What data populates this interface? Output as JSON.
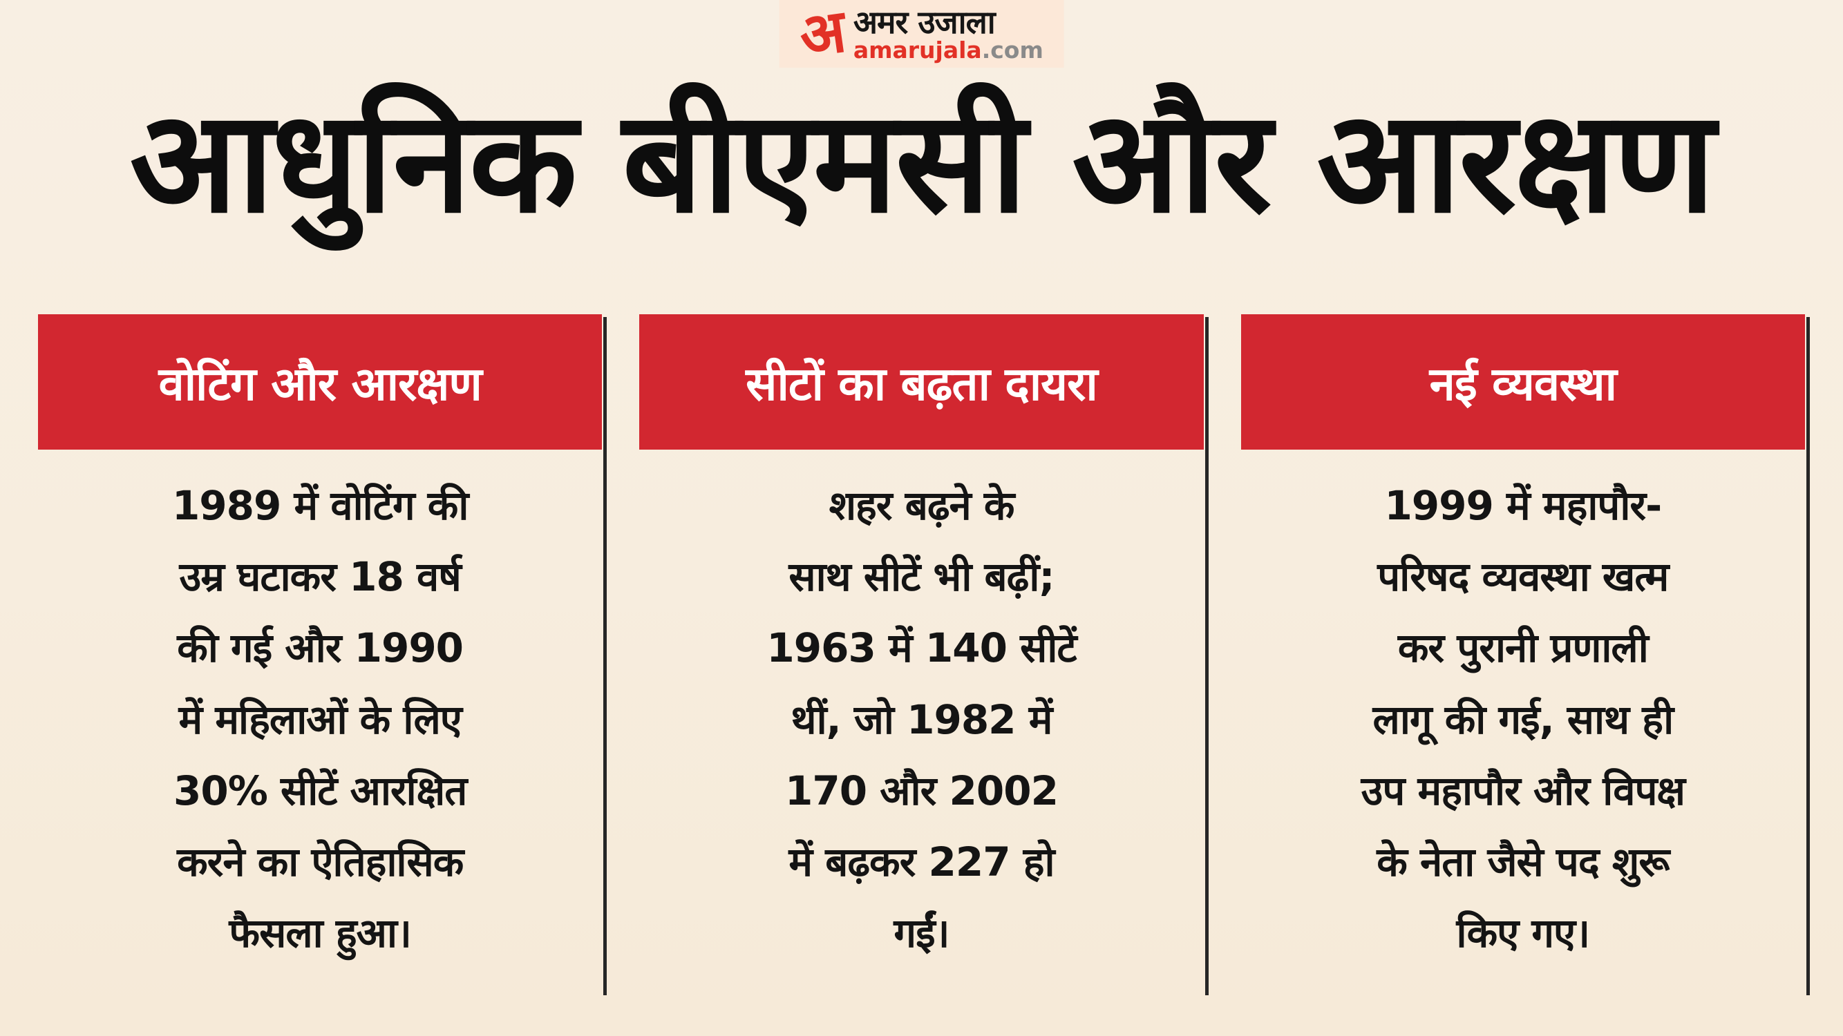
{
  "page": {
    "background": "#f7eee1",
    "accent_red": "#d22730",
    "divider_color": "#262626"
  },
  "logo": {
    "monogram": "अ",
    "name_hindi": "अमर उजाला",
    "domain_red": "amarujala",
    "domain_gray": ".com",
    "brand_red": "#e23126",
    "panel_pink": "#fce8d8"
  },
  "title": "आधुनिक बीएमसी और आरक्षण",
  "columns": [
    {
      "header": "वोटिंग और आरक्षण",
      "body": "1989 में वोटिंग की\nउम्र घटाकर 18 वर्ष\nकी गई और 1990\nमें महिलाओं के लिए\n30% सीटें आरक्षित\nकरने का ऐतिहासिक\nफैसला हुआ।"
    },
    {
      "header": "सीटों का बढ़ता दायरा",
      "body": "शहर बढ़ने के\nसाथ सीटें भी बढ़ीं;\n1963 में 140 सीटें\nथीं, जो 1982 में\n170 और 2002\nमें बढ़कर 227 हो\nगईं।"
    },
    {
      "header": "नई व्यवस्था",
      "body": "1999 में महापौर-\nपरिषद व्यवस्था खत्म\nकर पुरानी प्रणाली\nलागू की गई, साथ ही\nउप महापौर और विपक्ष\nके नेता जैसे पद शुरू\nकिए गए।"
    }
  ]
}
